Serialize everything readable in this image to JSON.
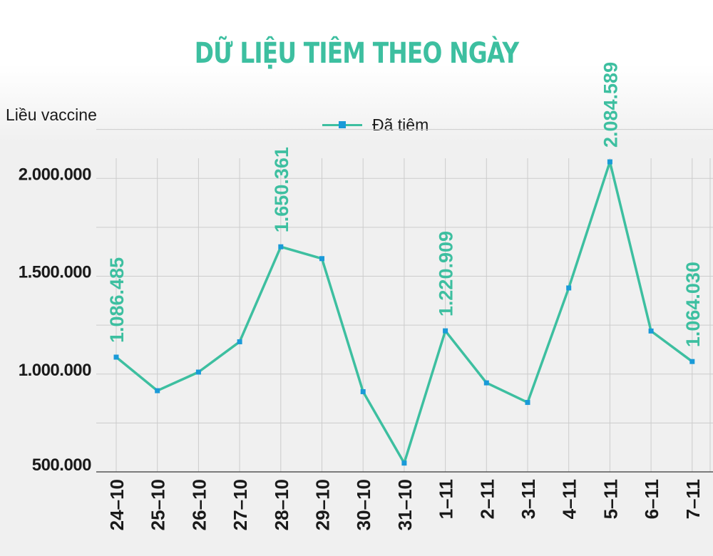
{
  "chart_data": {
    "type": "line",
    "title": "DỮ LIỆU TIÊM THEO NGÀY",
    "ylabel": "Liều vaccine",
    "xlabel": "",
    "categories": [
      "24–10",
      "25–10",
      "26–10",
      "27–10",
      "28–10",
      "29–10",
      "30–10",
      "31–10",
      "1–11",
      "2–11",
      "3–11",
      "4–11",
      "5–11",
      "6–11",
      "7–11"
    ],
    "series": [
      {
        "name": "Đã tiêm",
        "values": [
          1086485,
          915000,
          1010000,
          1165000,
          1650361,
          1590000,
          910000,
          545000,
          1220909,
          955000,
          855000,
          1440000,
          2084589,
          1220000,
          1064030
        ]
      }
    ],
    "labeled_points": [
      {
        "index": 0,
        "label": "1.086.485"
      },
      {
        "index": 4,
        "label": "1.650.361"
      },
      {
        "index": 8,
        "label": "1.220.909"
      },
      {
        "index": 12,
        "label": "2.084.589"
      },
      {
        "index": 14,
        "label": "1.064.030"
      }
    ],
    "yticks": [
      {
        "value": 500000,
        "label": "500.000"
      },
      {
        "value": 1000000,
        "label": "1.000.000"
      },
      {
        "value": 1500000,
        "label": "1.500.000"
      },
      {
        "value": 2000000,
        "label": "2.000.000"
      }
    ],
    "ylim": [
      500000,
      2000000
    ],
    "grid": true,
    "legend_position": "top",
    "colors": {
      "line": "#3dbfa0",
      "marker": "#1a9ad8",
      "label": "#3dbfa0",
      "grid": "#cccccc"
    }
  }
}
